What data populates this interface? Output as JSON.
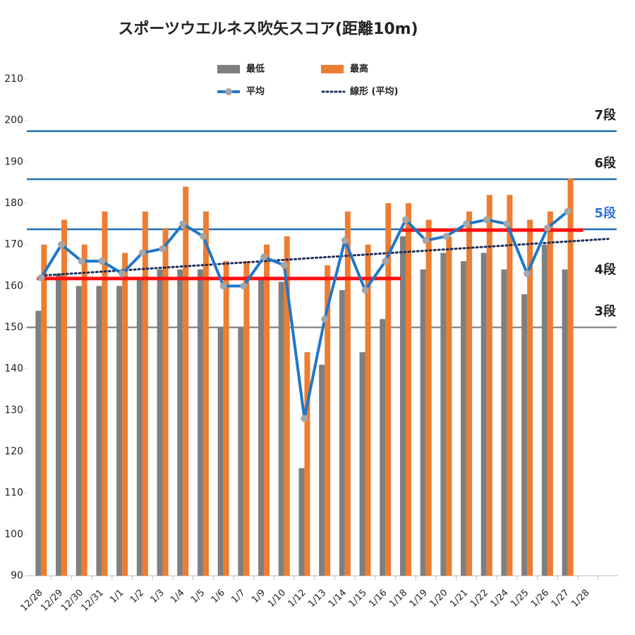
{
  "chart_data": {
    "type": "bar",
    "title": "スポーツウエルネス吹矢スコア(距離10m)",
    "categories": [
      "12/28",
      "12/29",
      "12/30",
      "12/31",
      "1/1",
      "1/2",
      "1/3",
      "1/4",
      "1/5",
      "1/6",
      "1/7",
      "1/9",
      "1/10",
      "1/12",
      "1/13",
      "1/14",
      "1/15",
      "1/16",
      "1/18",
      "1/19",
      "1/20",
      "1/21",
      "1/22",
      "1/24",
      "1/25",
      "1/26",
      "1/27",
      "1/28"
    ],
    "series": [
      {
        "name": "最低",
        "mark": "bar",
        "color": "#7f7f7f",
        "values": [
          154,
          163,
          160,
          160,
          160,
          162,
          164,
          164,
          164,
          150,
          150,
          162,
          161,
          116,
          141,
          159,
          144,
          152,
          172,
          164,
          168,
          166,
          168,
          164,
          158,
          170,
          164,
          null
        ]
      },
      {
        "name": "最高",
        "mark": "bar",
        "color": "#ed7d31",
        "values": [
          170,
          176,
          170,
          178,
          168,
          178,
          174,
          184,
          178,
          166,
          166,
          170,
          172,
          144,
          165,
          178,
          170,
          180,
          180,
          176,
          172,
          178,
          182,
          182,
          176,
          178,
          186,
          null
        ]
      },
      {
        "name": "平均",
        "mark": "line",
        "color": "#1f77c8",
        "values": [
          162,
          170,
          166,
          166,
          163,
          168,
          169,
          175,
          172,
          160,
          160,
          167,
          165,
          128,
          152,
          171,
          159,
          166,
          176,
          171,
          172,
          175,
          176,
          175,
          163,
          174,
          178,
          null
        ]
      }
    ],
    "trendline": {
      "name": "線形 (平均)",
      "color": "#1f2d5a"
    },
    "ylim": [
      90,
      210
    ],
    "yticks": [
      90,
      100,
      110,
      120,
      130,
      140,
      150,
      160,
      170,
      180,
      190,
      200,
      210
    ],
    "reference_lines": [
      {
        "label": "7段",
        "value": 197.4,
        "color": "#1f6fb5",
        "label_color": "#222"
      },
      {
        "label": "6段",
        "value": 185.8,
        "color": "#1f6fb5",
        "label_color": "#222"
      },
      {
        "label": "5段",
        "value": 173.7,
        "color": "#1f6fb5",
        "label_color": "#2e75d0"
      },
      {
        "label": "3段",
        "value": 150,
        "color": "#8c8c8c",
        "label_color": "#222"
      }
    ],
    "annotations": [
      {
        "text": "4段",
        "value": 163.8
      }
    ],
    "segments": [
      {
        "value": 161.8,
        "from": "12/28",
        "to": "1/16",
        "color": "#ff1010"
      },
      {
        "value": 173.5,
        "from": "1/18",
        "to": "1/27",
        "color": "#ff1010"
      }
    ]
  }
}
